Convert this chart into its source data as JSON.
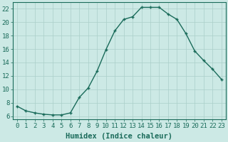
{
  "x": [
    0,
    1,
    2,
    3,
    4,
    5,
    6,
    7,
    8,
    9,
    10,
    11,
    12,
    13,
    14,
    15,
    16,
    17,
    18,
    19,
    20,
    21,
    22,
    23
  ],
  "y": [
    7.5,
    6.8,
    6.5,
    6.3,
    6.2,
    6.2,
    6.5,
    8.8,
    10.2,
    12.7,
    15.9,
    18.7,
    20.4,
    20.8,
    22.2,
    22.2,
    22.2,
    21.2,
    20.4,
    18.3,
    15.7,
    14.3,
    13.0,
    11.5
  ],
  "xlabel": "Humidex (Indice chaleur)",
  "xlim": [
    -0.5,
    23.5
  ],
  "ylim": [
    5.5,
    23.0
  ],
  "yticks": [
    6,
    8,
    10,
    12,
    14,
    16,
    18,
    20,
    22
  ],
  "xticks": [
    0,
    1,
    2,
    3,
    4,
    5,
    6,
    7,
    8,
    9,
    10,
    11,
    12,
    13,
    14,
    15,
    16,
    17,
    18,
    19,
    20,
    21,
    22,
    23
  ],
  "line_color": "#1a6b5a",
  "marker": "+",
  "marker_size": 3,
  "marker_lw": 1.0,
  "line_width": 1.0,
  "bg_color": "#cce9e5",
  "grid_color": "#aacfc9",
  "tick_fontsize": 6.5,
  "xlabel_fontsize": 7.5,
  "spine_color": "#1a6b5a"
}
